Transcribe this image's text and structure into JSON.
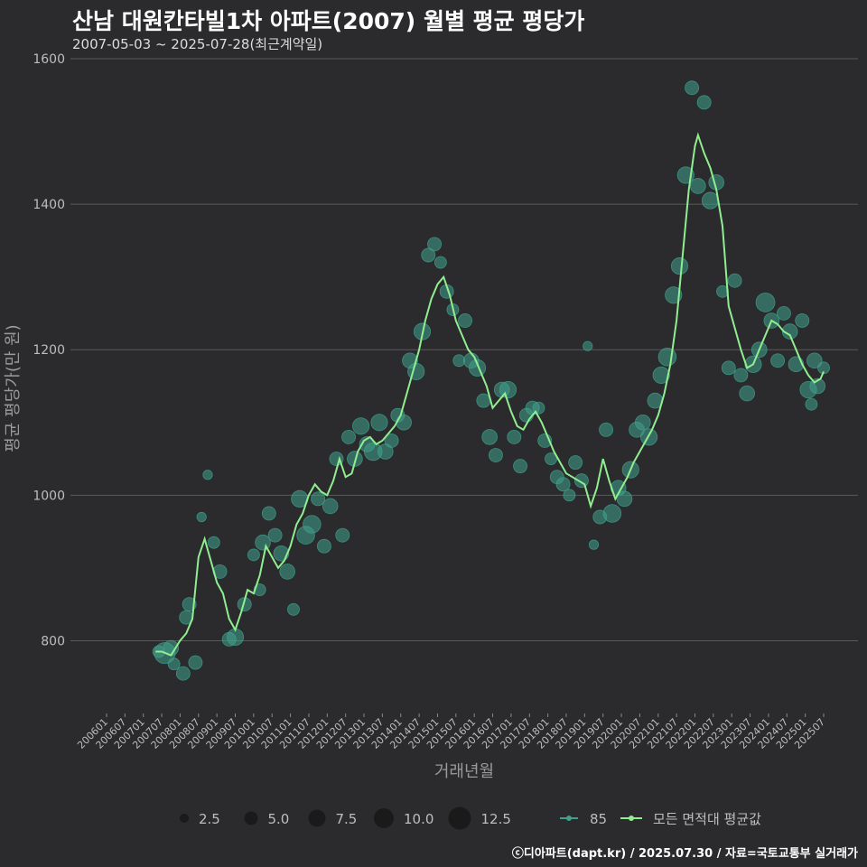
{
  "title": "산남 대원칸타빌1차 아파트(2007) 월별 평균 평당가",
  "subtitle": "2007-05-03 ~ 2025-07-28(최근계약일)",
  "credit": "ⓒ디아파트(dapt.kr) / 2025.07.30 / 자료=국토교통부 실거래가",
  "colors": {
    "background": "#2b2b2d",
    "grid": "#5a5a5a",
    "avg_line": "#90ee90",
    "size_points": "#3fa08c",
    "size_legend": "#1a1a1a"
  },
  "chart_data": {
    "type": "line",
    "title": "산남 대원칸타빌1차 아파트(2007) 월별 평균 평당가",
    "xlabel": "거래년월",
    "ylabel": "평균 평당가(만 원)",
    "ylim": [
      700,
      1600
    ],
    "yticks": [
      800,
      1000,
      1200,
      1400,
      1600
    ],
    "xlim": [
      "2006-01",
      "2025-07"
    ],
    "xticks": [
      "200601",
      "200607",
      "200701",
      "200707",
      "200801",
      "200807",
      "200901",
      "200907",
      "201001",
      "201007",
      "201101",
      "201107",
      "201201",
      "201207",
      "201301",
      "201307",
      "201401",
      "201407",
      "201501",
      "201507",
      "201601",
      "201607",
      "201701",
      "201707",
      "201801",
      "201807",
      "201901",
      "201907",
      "202001",
      "202007",
      "202101",
      "202107",
      "202201",
      "202207",
      "202301",
      "202307",
      "202401",
      "202407",
      "202501",
      "202507"
    ],
    "grid": true,
    "legend_position": "bottom",
    "size_legend": {
      "values": [
        2.5,
        5.0,
        7.5,
        10.0,
        12.5
      ],
      "labels": [
        "2.5",
        "5.0",
        "7.5",
        "10.0",
        "12.5"
      ]
    },
    "series": [
      {
        "name": "모든 면적대 평균값",
        "style": "line",
        "points": [
          [
            "2007-05",
            785
          ],
          [
            "2007-07",
            785
          ],
          [
            "2007-10",
            780
          ],
          [
            "2008-01",
            800
          ],
          [
            "2008-03",
            810
          ],
          [
            "2008-05",
            830
          ],
          [
            "2008-07",
            915
          ],
          [
            "2008-09",
            940
          ],
          [
            "2008-11",
            910
          ],
          [
            "2009-01",
            880
          ],
          [
            "2009-03",
            865
          ],
          [
            "2009-05",
            830
          ],
          [
            "2009-07",
            815
          ],
          [
            "2009-09",
            840
          ],
          [
            "2009-11",
            870
          ],
          [
            "2010-01",
            865
          ],
          [
            "2010-03",
            890
          ],
          [
            "2010-05",
            930
          ],
          [
            "2010-07",
            915
          ],
          [
            "2010-09",
            900
          ],
          [
            "2010-11",
            910
          ],
          [
            "2011-01",
            930
          ],
          [
            "2011-03",
            960
          ],
          [
            "2011-05",
            975
          ],
          [
            "2011-07",
            1000
          ],
          [
            "2011-09",
            1015
          ],
          [
            "2011-11",
            1005
          ],
          [
            "2012-01",
            1000
          ],
          [
            "2012-03",
            1020
          ],
          [
            "2012-05",
            1050
          ],
          [
            "2012-07",
            1025
          ],
          [
            "2012-09",
            1030
          ],
          [
            "2012-11",
            1060
          ],
          [
            "2013-01",
            1075
          ],
          [
            "2013-03",
            1080
          ],
          [
            "2013-05",
            1070
          ],
          [
            "2013-07",
            1075
          ],
          [
            "2013-09",
            1085
          ],
          [
            "2013-11",
            1095
          ],
          [
            "2014-01",
            1110
          ],
          [
            "2014-03",
            1140
          ],
          [
            "2014-05",
            1170
          ],
          [
            "2014-07",
            1200
          ],
          [
            "2014-09",
            1240
          ],
          [
            "2014-11",
            1270
          ],
          [
            "2015-01",
            1290
          ],
          [
            "2015-03",
            1300
          ],
          [
            "2015-05",
            1275
          ],
          [
            "2015-07",
            1240
          ],
          [
            "2015-09",
            1220
          ],
          [
            "2015-11",
            1200
          ],
          [
            "2016-01",
            1190
          ],
          [
            "2016-03",
            1170
          ],
          [
            "2016-05",
            1150
          ],
          [
            "2016-07",
            1120
          ],
          [
            "2016-09",
            1130
          ],
          [
            "2016-11",
            1140
          ],
          [
            "2017-01",
            1115
          ],
          [
            "2017-03",
            1095
          ],
          [
            "2017-05",
            1090
          ],
          [
            "2017-07",
            1105
          ],
          [
            "2017-09",
            1115
          ],
          [
            "2017-11",
            1100
          ],
          [
            "2018-01",
            1080
          ],
          [
            "2018-03",
            1060
          ],
          [
            "2018-05",
            1045
          ],
          [
            "2018-07",
            1030
          ],
          [
            "2018-09",
            1025
          ],
          [
            "2018-11",
            1020
          ],
          [
            "2019-01",
            1015
          ],
          [
            "2019-03",
            985
          ],
          [
            "2019-05",
            1010
          ],
          [
            "2019-07",
            1050
          ],
          [
            "2019-09",
            1020
          ],
          [
            "2019-11",
            995
          ],
          [
            "2020-01",
            1010
          ],
          [
            "2020-03",
            1025
          ],
          [
            "2020-05",
            1045
          ],
          [
            "2020-07",
            1060
          ],
          [
            "2020-09",
            1075
          ],
          [
            "2020-11",
            1090
          ],
          [
            "2021-01",
            1110
          ],
          [
            "2021-03",
            1140
          ],
          [
            "2021-05",
            1180
          ],
          [
            "2021-07",
            1240
          ],
          [
            "2021-09",
            1330
          ],
          [
            "2021-11",
            1420
          ],
          [
            "2022-01",
            1480
          ],
          [
            "2022-02",
            1495
          ],
          [
            "2022-04",
            1470
          ],
          [
            "2022-06",
            1450
          ],
          [
            "2022-08",
            1420
          ],
          [
            "2022-10",
            1370
          ],
          [
            "2022-12",
            1260
          ],
          [
            "2023-02",
            1230
          ],
          [
            "2023-04",
            1200
          ],
          [
            "2023-06",
            1175
          ],
          [
            "2023-08",
            1180
          ],
          [
            "2023-10",
            1200
          ],
          [
            "2023-12",
            1220
          ],
          [
            "2024-02",
            1240
          ],
          [
            "2024-04",
            1235
          ],
          [
            "2024-06",
            1225
          ],
          [
            "2024-08",
            1220
          ],
          [
            "2024-10",
            1200
          ],
          [
            "2024-12",
            1180
          ],
          [
            "2025-02",
            1165
          ],
          [
            "2025-04",
            1155
          ],
          [
            "2025-06",
            1160
          ],
          [
            "2025-07",
            1170
          ]
        ]
      },
      {
        "name": "85",
        "style": "scatter",
        "points": [
          [
            "2007-06",
            785,
            2
          ],
          [
            "2007-08",
            783,
            9
          ],
          [
            "2007-10",
            790,
            4
          ],
          [
            "2007-11",
            768,
            2
          ],
          [
            "2008-02",
            755,
            3
          ],
          [
            "2008-03",
            832,
            3
          ],
          [
            "2008-04",
            850,
            3
          ],
          [
            "2008-06",
            770,
            3
          ],
          [
            "2008-08",
            970,
            1
          ],
          [
            "2008-10",
            1028,
            1
          ],
          [
            "2008-12",
            935,
            2
          ],
          [
            "2009-02",
            895,
            3
          ],
          [
            "2009-05",
            802,
            3
          ],
          [
            "2009-07",
            805,
            5
          ],
          [
            "2009-10",
            850,
            3
          ],
          [
            "2010-01",
            918,
            2
          ],
          [
            "2010-03",
            870,
            2
          ],
          [
            "2010-04",
            935,
            4
          ],
          [
            "2010-06",
            975,
            3
          ],
          [
            "2010-08",
            945,
            3
          ],
          [
            "2010-10",
            920,
            4
          ],
          [
            "2010-12",
            895,
            4
          ],
          [
            "2011-02",
            843,
            2
          ],
          [
            "2011-04",
            995,
            5
          ],
          [
            "2011-06",
            945,
            6
          ],
          [
            "2011-08",
            960,
            6
          ],
          [
            "2011-10",
            995,
            3
          ],
          [
            "2011-12",
            930,
            3
          ],
          [
            "2012-02",
            985,
            4
          ],
          [
            "2012-04",
            1050,
            3
          ],
          [
            "2012-06",
            945,
            3
          ],
          [
            "2012-08",
            1080,
            3
          ],
          [
            "2012-10",
            1050,
            4
          ],
          [
            "2012-12",
            1095,
            5
          ],
          [
            "2013-02",
            1070,
            4
          ],
          [
            "2013-04",
            1060,
            6
          ],
          [
            "2013-06",
            1100,
            5
          ],
          [
            "2013-08",
            1060,
            4
          ],
          [
            "2013-10",
            1075,
            3
          ],
          [
            "2013-12",
            1110,
            3
          ],
          [
            "2014-02",
            1100,
            4
          ],
          [
            "2014-04",
            1185,
            4
          ],
          [
            "2014-06",
            1170,
            5
          ],
          [
            "2014-08",
            1225,
            5
          ],
          [
            "2014-10",
            1330,
            3
          ],
          [
            "2014-12",
            1345,
            3
          ],
          [
            "2015-02",
            1320,
            2
          ],
          [
            "2015-04",
            1280,
            3
          ],
          [
            "2015-06",
            1255,
            2
          ],
          [
            "2015-08",
            1185,
            2
          ],
          [
            "2015-10",
            1240,
            3
          ],
          [
            "2015-12",
            1185,
            4
          ],
          [
            "2016-02",
            1175,
            5
          ],
          [
            "2016-04",
            1130,
            3
          ],
          [
            "2016-06",
            1080,
            4
          ],
          [
            "2016-08",
            1055,
            3
          ],
          [
            "2016-10",
            1145,
            4
          ],
          [
            "2016-12",
            1145,
            5
          ],
          [
            "2017-02",
            1080,
            3
          ],
          [
            "2017-04",
            1040,
            3
          ],
          [
            "2017-06",
            1110,
            3
          ],
          [
            "2017-08",
            1120,
            3
          ],
          [
            "2017-10",
            1120,
            2
          ],
          [
            "2017-12",
            1075,
            3
          ],
          [
            "2018-02",
            1050,
            2
          ],
          [
            "2018-04",
            1025,
            3
          ],
          [
            "2018-06",
            1015,
            3
          ],
          [
            "2018-08",
            1000,
            2
          ],
          [
            "2018-10",
            1045,
            3
          ],
          [
            "2018-12",
            1020,
            3
          ],
          [
            "2019-02",
            1205,
            1
          ],
          [
            "2019-04",
            932,
            1
          ],
          [
            "2019-06",
            970,
            3
          ],
          [
            "2019-08",
            1090,
            3
          ],
          [
            "2019-10",
            975,
            6
          ],
          [
            "2019-12",
            1010,
            4
          ],
          [
            "2020-02",
            995,
            4
          ],
          [
            "2020-04",
            1035,
            5
          ],
          [
            "2020-06",
            1090,
            4
          ],
          [
            "2020-08",
            1100,
            4
          ],
          [
            "2020-10",
            1080,
            5
          ],
          [
            "2020-12",
            1130,
            4
          ],
          [
            "2021-02",
            1165,
            5
          ],
          [
            "2021-04",
            1190,
            6
          ],
          [
            "2021-06",
            1275,
            5
          ],
          [
            "2021-08",
            1315,
            5
          ],
          [
            "2021-10",
            1440,
            5
          ],
          [
            "2021-12",
            1560,
            3
          ],
          [
            "2022-02",
            1425,
            4
          ],
          [
            "2022-04",
            1540,
            3
          ],
          [
            "2022-06",
            1405,
            5
          ],
          [
            "2022-08",
            1430,
            4
          ],
          [
            "2022-10",
            1280,
            2
          ],
          [
            "2022-12",
            1175,
            3
          ],
          [
            "2023-02",
            1295,
            3
          ],
          [
            "2023-04",
            1165,
            3
          ],
          [
            "2023-06",
            1140,
            4
          ],
          [
            "2023-08",
            1180,
            5
          ],
          [
            "2023-10",
            1200,
            4
          ],
          [
            "2023-12",
            1265,
            7
          ],
          [
            "2024-02",
            1240,
            4
          ],
          [
            "2024-04",
            1185,
            3
          ],
          [
            "2024-06",
            1250,
            3
          ],
          [
            "2024-08",
            1225,
            4
          ],
          [
            "2024-10",
            1180,
            4
          ],
          [
            "2024-12",
            1240,
            3
          ],
          [
            "2025-02",
            1145,
            5
          ],
          [
            "2025-03",
            1125,
            2
          ],
          [
            "2025-04",
            1185,
            4
          ],
          [
            "2025-05",
            1150,
            4
          ],
          [
            "2025-07",
            1175,
            2
          ]
        ]
      }
    ]
  }
}
